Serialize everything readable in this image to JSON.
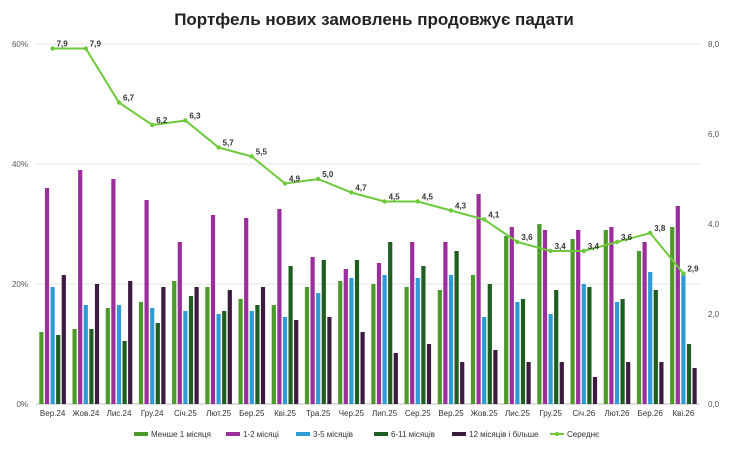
{
  "chart_data": {
    "type": "bar",
    "title": "Портфель нових замовлень продовжує падати",
    "categories": [
      "Вер.24",
      "Жов.24",
      "Лис.24",
      "Гру.24",
      "Січ.25",
      "Лют.25",
      "Бер.25",
      "Кві.25",
      "Тра.25",
      "Чер.25",
      "Лип.25",
      "Сер.25",
      "Вер.25",
      "Жов.25",
      "Лис.25",
      "Гру.25",
      "Січ.26",
      "Лют.26",
      "Бер.26",
      "Кві.26"
    ],
    "y_left": {
      "min": 0,
      "max": 60,
      "ticks": [
        0,
        20,
        40,
        60
      ],
      "tick_labels": [
        "0%",
        "20%",
        "40%",
        "60%"
      ]
    },
    "y_right": {
      "min": 0,
      "max": 8,
      "ticks": [
        0,
        2,
        4,
        6,
        8
      ],
      "tick_labels": [
        "0,0",
        "2,0",
        "4,0",
        "6,0",
        "8,0"
      ]
    },
    "grid": "horizontal",
    "legend_position": "bottom",
    "series": [
      {
        "name": "Менше 1 місяця",
        "color": "#4c9a2a",
        "axis": "left",
        "values": [
          12,
          12.5,
          16,
          17,
          20.5,
          19.5,
          17.5,
          16.5,
          19.5,
          20.5,
          20,
          19.5,
          19,
          21.5,
          28,
          30,
          27.5,
          29,
          25.5,
          29.5
        ]
      },
      {
        "name": "1-2 місяці",
        "color": "#9b2e9b",
        "axis": "left",
        "values": [
          36,
          39,
          37.5,
          34,
          27,
          31.5,
          31,
          32.5,
          24.5,
          22.5,
          23.5,
          27,
          27,
          35,
          29.5,
          29,
          29,
          29.5,
          27,
          33
        ]
      },
      {
        "name": "3-5 місяців",
        "color": "#2e9bd6",
        "axis": "left",
        "values": [
          19.5,
          16.5,
          16.5,
          16,
          15.5,
          15,
          15.5,
          14.5,
          18.5,
          21,
          21.5,
          21,
          21.5,
          14.5,
          17,
          15,
          20,
          17,
          22,
          22
        ]
      },
      {
        "name": "6-11 місяців",
        "color": "#1e5e20",
        "axis": "left",
        "values": [
          11.5,
          12.5,
          10.5,
          13.5,
          18,
          15.5,
          16.5,
          23,
          24,
          24,
          27,
          23,
          25.5,
          20,
          17.5,
          19,
          19.5,
          17.5,
          19,
          10
        ]
      },
      {
        "name": "12 місяців і більше",
        "color": "#3d1a40",
        "axis": "left",
        "values": [
          21.5,
          20,
          20.5,
          19.5,
          19.5,
          19,
          19.5,
          14,
          14.5,
          12,
          8.5,
          10,
          7,
          9,
          7,
          7,
          4.5,
          7,
          7,
          6
        ]
      },
      {
        "name": "Середнє",
        "type": "line",
        "color": "#6dc93a",
        "axis": "right",
        "values": [
          7.9,
          7.9,
          6.7,
          6.2,
          6.3,
          5.7,
          5.5,
          4.9,
          5.0,
          4.7,
          4.5,
          4.5,
          4.3,
          4.1,
          3.6,
          3.4,
          3.4,
          3.6,
          3.8,
          2.9
        ],
        "labels": [
          "7,9",
          "7,9",
          "6,7",
          "6,2",
          "6,3",
          "5,7",
          "5,5",
          "4,9",
          "5,0",
          "4,7",
          "4,5",
          "4,5",
          "4,3",
          "4,1",
          "3,6",
          "3,4",
          "3,4",
          "3,6",
          "3,8",
          "2,9"
        ]
      }
    ]
  }
}
